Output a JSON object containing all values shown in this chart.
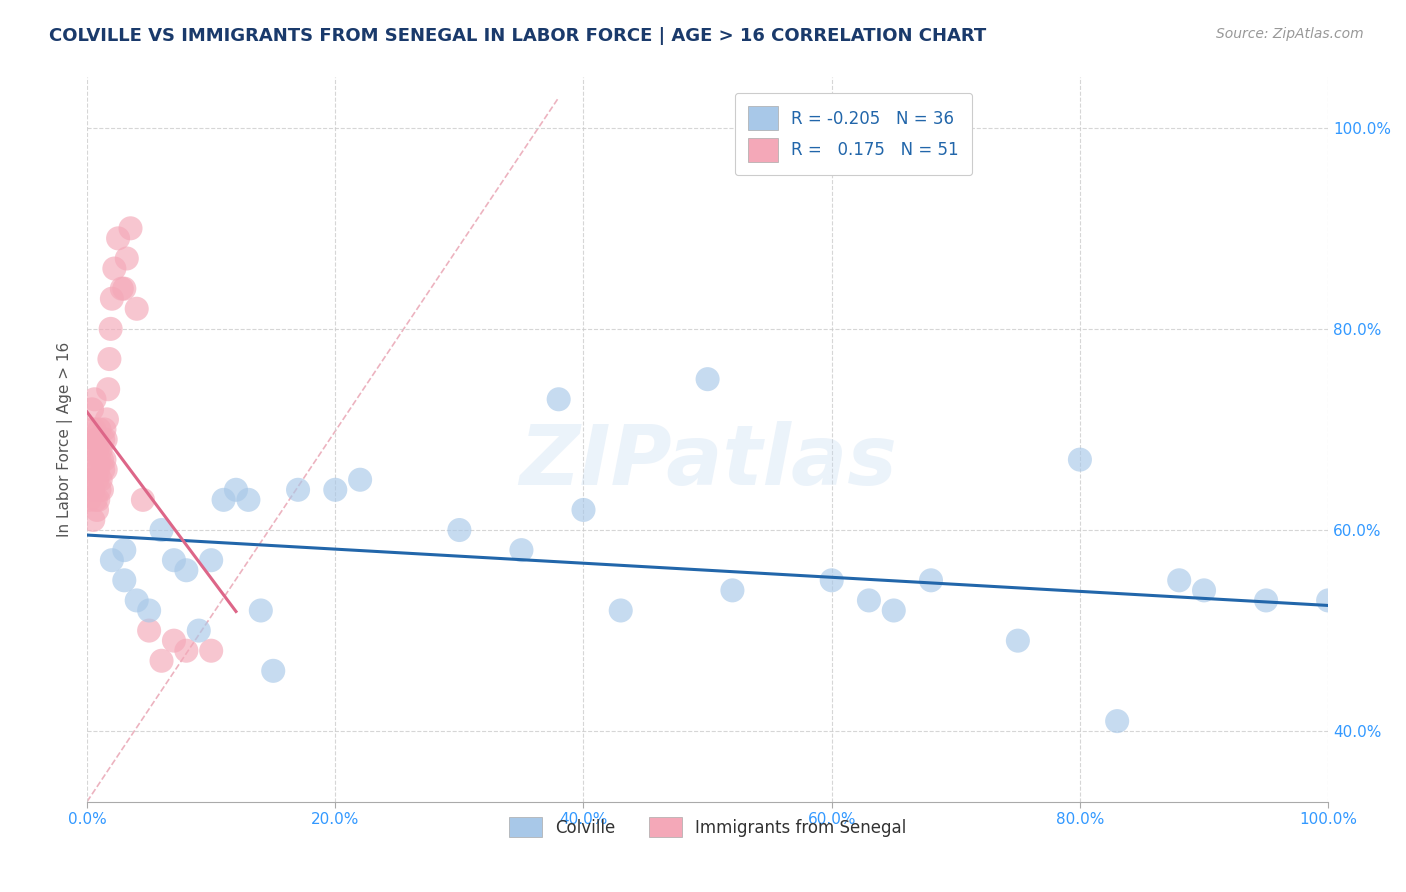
{
  "title": "COLVILLE VS IMMIGRANTS FROM SENEGAL IN LABOR FORCE | AGE > 16 CORRELATION CHART",
  "source_text": "Source: ZipAtlas.com",
  "ylabel": "In Labor Force | Age > 16",
  "xlim": [
    0.0,
    1.0
  ],
  "ylim": [
    0.33,
    1.05
  ],
  "yticks": [
    0.4,
    0.6,
    0.8,
    1.0
  ],
  "xticks": [
    0.0,
    0.2,
    0.4,
    0.6,
    0.8,
    1.0
  ],
  "title_color": "#1a3a6b",
  "title_fontsize": 13,
  "background_color": "#ffffff",
  "grid_color": "#cccccc",
  "watermark": "ZIPatlas",
  "blue_color": "#a8c8e8",
  "pink_color": "#f4a8b8",
  "blue_line_color": "#2266aa",
  "pink_line_color": "#dd6688",
  "diag_color": "#e8a0b0",
  "tick_color": "#3399ff",
  "colville_x": [
    0.02,
    0.03,
    0.03,
    0.04,
    0.05,
    0.06,
    0.07,
    0.08,
    0.09,
    0.1,
    0.11,
    0.12,
    0.13,
    0.14,
    0.15,
    0.17,
    0.2,
    0.22,
    0.3,
    0.35,
    0.38,
    0.4,
    0.43,
    0.5,
    0.52,
    0.6,
    0.63,
    0.65,
    0.68,
    0.75,
    0.8,
    0.83,
    0.88,
    0.9,
    0.95,
    1.0
  ],
  "colville_y": [
    0.57,
    0.55,
    0.58,
    0.53,
    0.52,
    0.6,
    0.57,
    0.56,
    0.5,
    0.57,
    0.63,
    0.64,
    0.63,
    0.52,
    0.46,
    0.64,
    0.64,
    0.65,
    0.6,
    0.58,
    0.73,
    0.62,
    0.52,
    0.75,
    0.54,
    0.55,
    0.53,
    0.52,
    0.55,
    0.49,
    0.67,
    0.41,
    0.55,
    0.54,
    0.53,
    0.53
  ],
  "senegal_x": [
    0.002,
    0.003,
    0.003,
    0.004,
    0.004,
    0.005,
    0.005,
    0.005,
    0.006,
    0.006,
    0.006,
    0.007,
    0.007,
    0.007,
    0.008,
    0.008,
    0.008,
    0.009,
    0.009,
    0.009,
    0.01,
    0.01,
    0.01,
    0.011,
    0.011,
    0.012,
    0.012,
    0.013,
    0.013,
    0.014,
    0.014,
    0.015,
    0.015,
    0.016,
    0.017,
    0.018,
    0.019,
    0.02,
    0.022,
    0.025,
    0.028,
    0.03,
    0.032,
    0.035,
    0.04,
    0.045,
    0.05,
    0.06,
    0.07,
    0.08,
    0.1
  ],
  "senegal_y": [
    0.63,
    0.65,
    0.68,
    0.7,
    0.72,
    0.61,
    0.64,
    0.66,
    0.68,
    0.7,
    0.73,
    0.63,
    0.66,
    0.69,
    0.62,
    0.65,
    0.68,
    0.63,
    0.66,
    0.69,
    0.64,
    0.67,
    0.7,
    0.65,
    0.68,
    0.64,
    0.67,
    0.66,
    0.69,
    0.67,
    0.7,
    0.66,
    0.69,
    0.71,
    0.74,
    0.77,
    0.8,
    0.83,
    0.86,
    0.89,
    0.84,
    0.84,
    0.87,
    0.9,
    0.82,
    0.63,
    0.5,
    0.47,
    0.49,
    0.48,
    0.48
  ]
}
